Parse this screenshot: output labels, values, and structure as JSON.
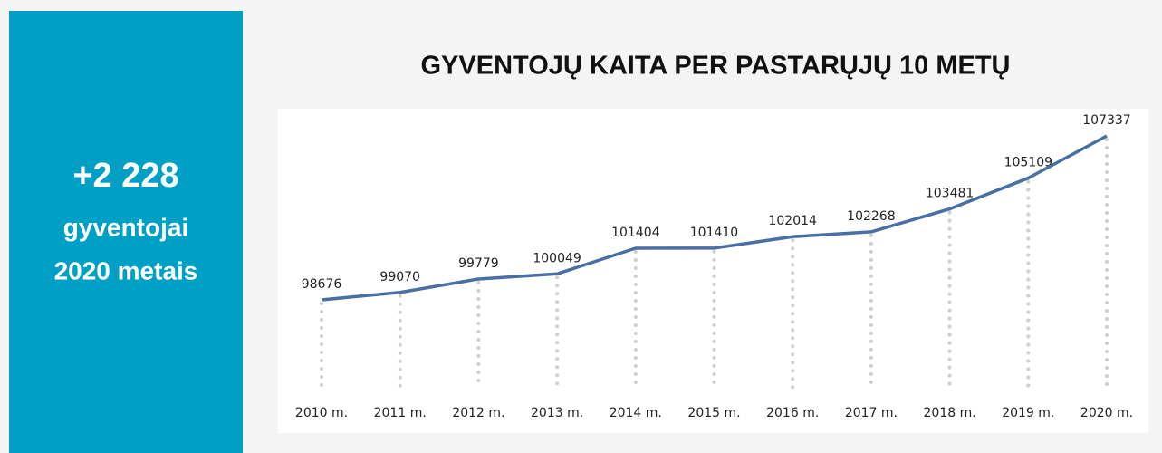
{
  "panel": {
    "headline": "+2 228",
    "line1": "gyventojai",
    "line2": "2020 metais"
  },
  "chart_data": {
    "type": "line",
    "title": "GYVENTOJŲ KAITA PER PASTARŲJŲ  10 METŲ",
    "categories": [
      "2010 m.",
      "2011 m.",
      "2012 m.",
      "2013 m.",
      "2014 m.",
      "2015 m.",
      "2016 m.",
      "2017 m.",
      "2018 m.",
      "2019 m.",
      "2020 m."
    ],
    "values": [
      98676,
      99070,
      99779,
      100049,
      101404,
      101410,
      102014,
      102268,
      103481,
      105109,
      107337
    ],
    "color": "#4a6fa5"
  }
}
